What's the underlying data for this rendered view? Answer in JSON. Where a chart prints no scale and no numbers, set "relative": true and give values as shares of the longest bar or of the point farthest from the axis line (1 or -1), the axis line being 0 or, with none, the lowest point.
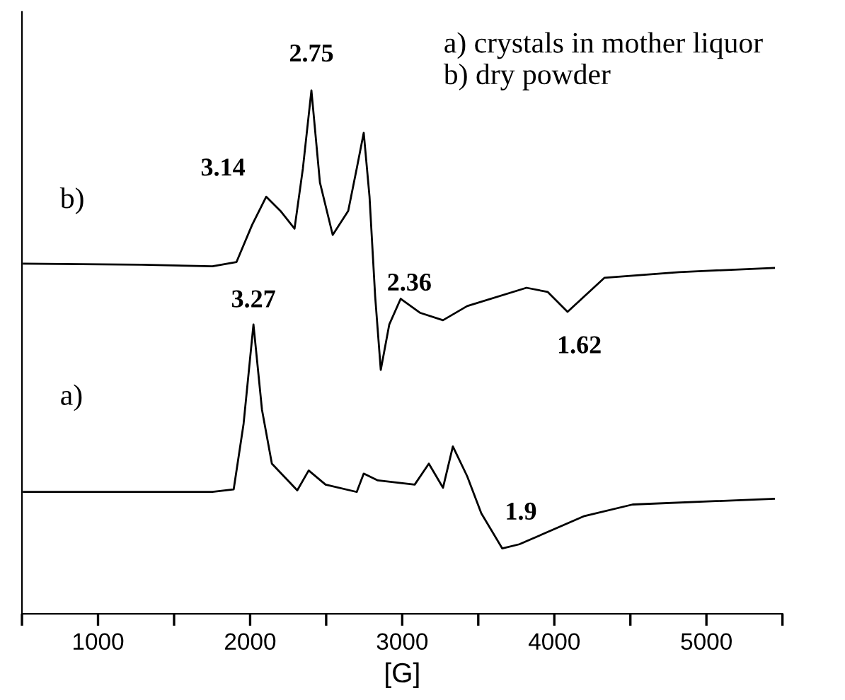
{
  "chart_data": {
    "type": "line",
    "relative": true,
    "xlabel": "[G]",
    "xlim": [
      500,
      5500
    ],
    "xticks": [
      {
        "value": 500,
        "label": null
      },
      1000,
      {
        "value": 1500,
        "label": null
      },
      2000,
      {
        "value": 2500,
        "label": null
      },
      3000,
      {
        "value": 3500,
        "label": null
      },
      4000,
      {
        "value": 4500,
        "label": null
      },
      5000,
      {
        "value": 5500,
        "label": null
      }
    ],
    "tick_labels": "x",
    "grid": false,
    "legend": false,
    "marker": "none",
    "line_style": "solid",
    "series": [
      {
        "name": "b)",
        "color": "#000000",
        "x": [
          512,
          1287,
          1752,
          1910,
          2013,
          2106,
          2199,
          2292,
          2347,
          2403,
          2459,
          2543,
          2645,
          2701,
          2747,
          2785,
          2822,
          2859,
          2915,
          2990,
          3119,
          3268,
          3427,
          3817,
          3957,
          4087,
          4329,
          4822,
          5444
        ],
        "values": [
          0.669,
          0.667,
          0.664,
          0.672,
          0.743,
          0.797,
          0.77,
          0.736,
          0.851,
          1,
          0.824,
          0.724,
          0.77,
          0.851,
          0.919,
          0.797,
          0.607,
          0.466,
          0.553,
          0.602,
          0.575,
          0.561,
          0.588,
          0.623,
          0.615,
          0.577,
          0.642,
          0.653,
          0.661
        ]
      },
      {
        "name": "a)",
        "color": "#000000",
        "x": [
          512,
          1752,
          1892,
          1957,
          2022,
          2078,
          2143,
          2310,
          2385,
          2496,
          2701,
          2747,
          2840,
          3082,
          3175,
          3268,
          3333,
          3427,
          3520,
          3658,
          3770,
          4198,
          4515,
          5444
        ],
        "values": [
          0.233,
          0.233,
          0.238,
          0.363,
          0.553,
          0.39,
          0.287,
          0.236,
          0.274,
          0.247,
          0.233,
          0.268,
          0.255,
          0.247,
          0.287,
          0.241,
          0.32,
          0.263,
          0.192,
          0.125,
          0.133,
          0.187,
          0.209,
          0.22
        ]
      }
    ],
    "annotations": [
      {
        "text": "3.14",
        "x": 2106,
        "y": 0.797
      },
      {
        "text": "2.75",
        "x": 2403,
        "y": 1
      },
      {
        "text": "2.36",
        "x": 2822,
        "y": 0.607
      },
      {
        "text": "1.62",
        "x": 4087,
        "y": 0.577
      },
      {
        "text": "3.27",
        "x": 2022,
        "y": 0.553
      },
      {
        "text": "1.9",
        "x": 3520,
        "y": 0.192
      },
      "a) crystals in mother liquor",
      "b) dry powder"
    ]
  }
}
